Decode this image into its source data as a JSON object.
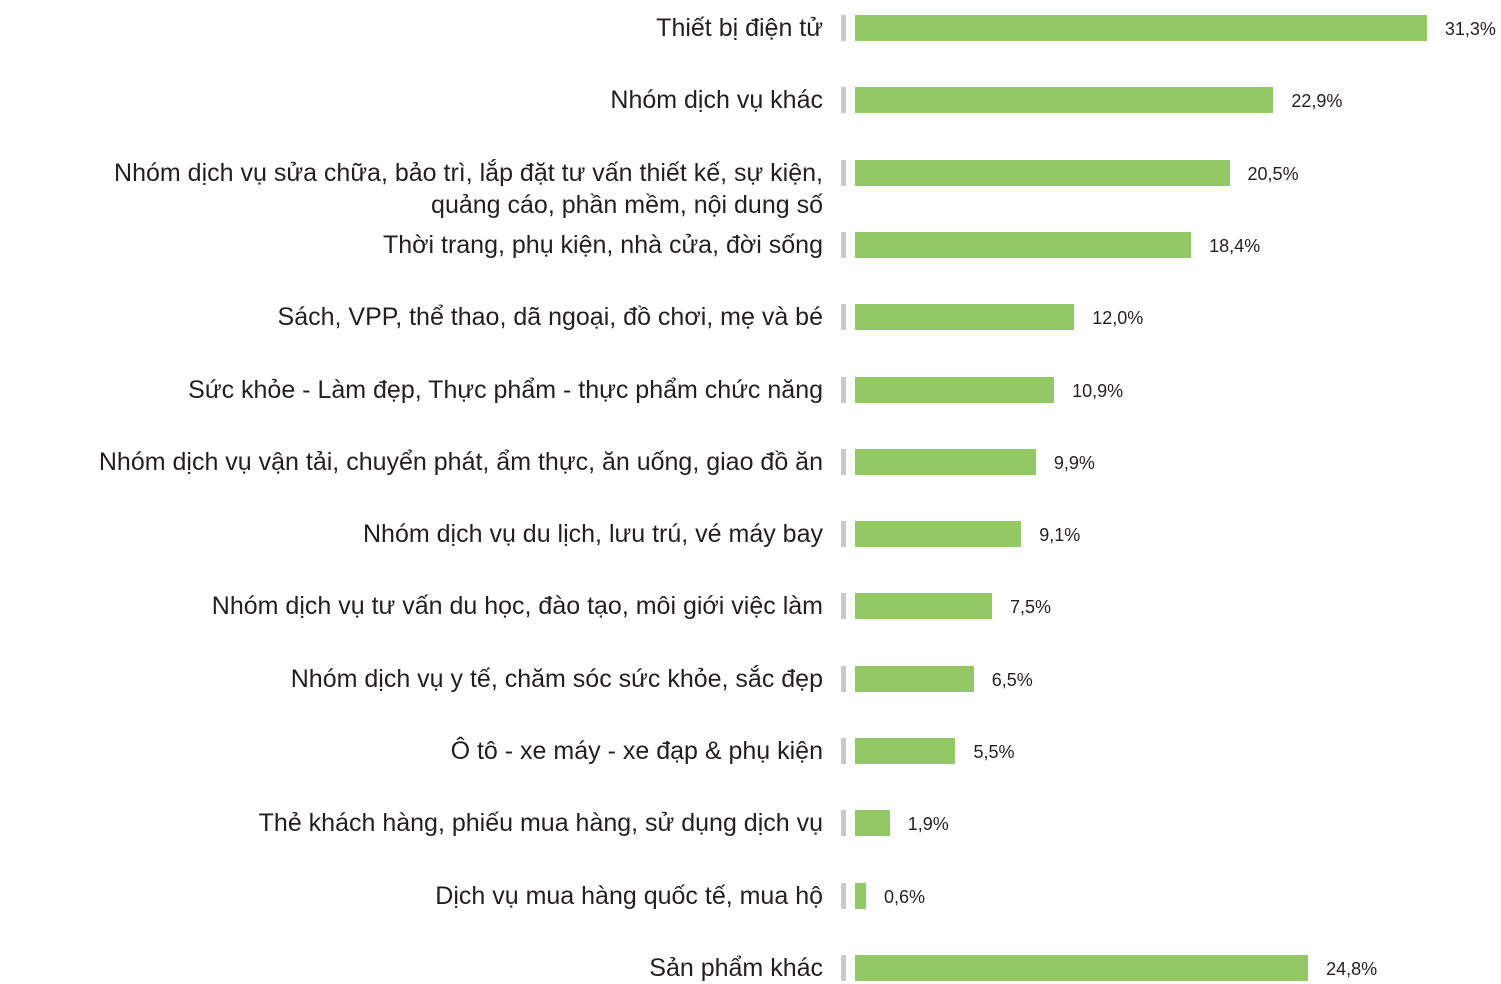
{
  "chart_data": {
    "type": "bar",
    "orientation": "horizontal",
    "categories": [
      "Thiết bị điện tử",
      "Nhóm dịch vụ khác",
      "Nhóm dịch vụ sửa chữa, bảo trì, lắp đặt tư vấn thiết kế, sự kiện,\nquảng cáo, phần mềm, nội dung số",
      "Thời trang, phụ kiện, nhà cửa, đời sống",
      "Sách, VPP, thể thao, dã ngoại, đồ chơi, mẹ và bé",
      "Sức khỏe - Làm đẹp, Thực phẩm - thực phẩm chức năng",
      "Nhóm dịch vụ vận tải, chuyển phát, ẩm thực, ăn uống, giao đồ ăn",
      "Nhóm dịch vụ du lịch, lưu trú, vé máy bay",
      "Nhóm dịch vụ tư vấn du học, đào tạo, môi giới việc làm",
      "Nhóm dịch vụ y tế, chăm sóc sức khỏe, sắc đẹp",
      "Ô tô - xe máy - xe đạp & phụ kiện",
      "Thẻ khách hàng, phiếu mua hàng, sử dụng dịch vụ",
      "Dịch vụ mua hàng quốc tế, mua hộ",
      "Sản phẩm khác"
    ],
    "values": [
      31.3,
      22.9,
      20.5,
      18.4,
      12.0,
      10.9,
      9.9,
      9.1,
      7.5,
      6.5,
      5.5,
      1.9,
      0.6,
      24.8
    ],
    "value_labels": [
      "31,3%",
      "22,9%",
      "20,5%",
      "18,4%",
      "12,0%",
      "10,9%",
      "9,9%",
      "9,1%",
      "7,5%",
      "6,5%",
      "5,5%",
      "1,9%",
      "0,6%",
      "24,8%"
    ],
    "color": "#92c964"
  }
}
